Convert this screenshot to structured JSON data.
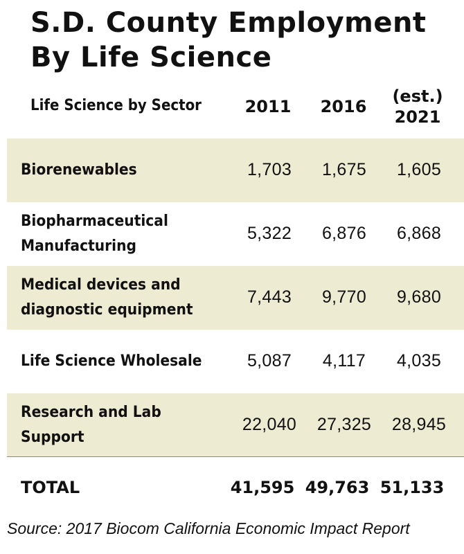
{
  "title": {
    "line1": "S.D. County Employment",
    "line2": "By Life Science"
  },
  "header": {
    "sector": "Life Science by Sector",
    "year1": "2011",
    "year2": "2016",
    "year3_prefix": "(est.)",
    "year3": "2021"
  },
  "chart_data": {
    "type": "table",
    "title": "S.D. County Employment By Life Science",
    "columns": [
      "Life Science by Sector",
      "2011",
      "2016",
      "(est.) 2021"
    ],
    "rows": [
      {
        "label_lines": [
          "Biorenewables"
        ],
        "values": [
          "1,703",
          "1,675",
          "1,605"
        ]
      },
      {
        "label_lines": [
          "Biopharmaceutical",
          "Manufacturing"
        ],
        "values": [
          "5,322",
          "6,876",
          "6,868"
        ]
      },
      {
        "label_lines": [
          "Medical devices and",
          "diagnostic equipment"
        ],
        "values": [
          "7,443",
          "9,770",
          "9,680"
        ]
      },
      {
        "label_lines": [
          "Life Science Wholesale"
        ],
        "values": [
          "5,087",
          "4,117",
          "4,035"
        ]
      },
      {
        "label_lines": [
          "Research and Lab",
          "Support"
        ],
        "values": [
          "22,040",
          "27,325",
          "28,945"
        ]
      }
    ],
    "total": {
      "label": "TOTAL",
      "values": [
        "41,595",
        "49,763",
        "51,133"
      ]
    }
  },
  "source": "Source: 2017 Biocom California Economic Impact Report",
  "colors": {
    "row_shade": "#eeebd3",
    "text": "#111111"
  }
}
